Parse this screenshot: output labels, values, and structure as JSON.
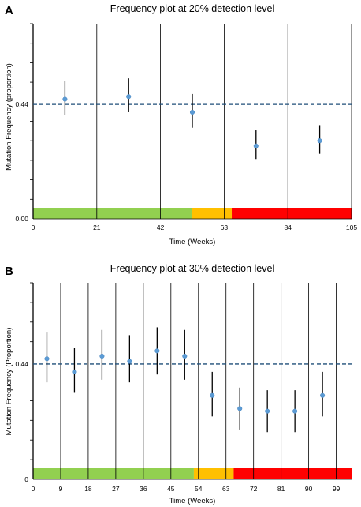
{
  "chart_data": [
    {
      "type": "scatter",
      "panel": "A",
      "title": "Frequency plot at 20% detection level",
      "xlabel": "Time (Weeks)",
      "ylabel": "Mutation Frequency (proportion)",
      "xlim": [
        0,
        105
      ],
      "ylim": [
        0,
        0.75
      ],
      "x_ticks": [
        0,
        21,
        42,
        63,
        84,
        105
      ],
      "y_tick_labels": [
        {
          "value": 0,
          "label": "0.00"
        },
        {
          "value": 0.44,
          "label": "0.44"
        }
      ],
      "y_minor_ticks": [
        0.075,
        0.15,
        0.225,
        0.3,
        0.375,
        0.525,
        0.6,
        0.675,
        0.75
      ],
      "vertical_lines_x": [
        0,
        21,
        42,
        63,
        84,
        105
      ],
      "reference_line_y": 0.44,
      "series": [
        {
          "points": [
            {
              "x": 10.5,
              "y": 0.46,
              "err_low": 0.4,
              "err_high": 0.53
            },
            {
              "x": 31.5,
              "y": 0.47,
              "err_low": 0.41,
              "err_high": 0.54
            },
            {
              "x": 52.5,
              "y": 0.41,
              "err_low": 0.35,
              "err_high": 0.48
            },
            {
              "x": 73.5,
              "y": 0.28,
              "err_low": 0.23,
              "err_high": 0.34
            },
            {
              "x": 94.5,
              "y": 0.3,
              "err_low": 0.25,
              "err_high": 0.36
            }
          ]
        }
      ],
      "bands": [
        {
          "from": 0,
          "to": 52.5,
          "color": "#92d050"
        },
        {
          "from": 52.5,
          "to": 65.5,
          "color": "#ffc000"
        },
        {
          "from": 65.5,
          "to": 105,
          "color": "#ff0000"
        }
      ]
    },
    {
      "type": "scatter",
      "panel": "B",
      "title": "Frequency plot at 30% detection level",
      "xlabel": "Time (Weeks)",
      "ylabel": "Mutation Frequency (Proportion)",
      "xlim": [
        0,
        104
      ],
      "ylim": [
        0,
        0.75
      ],
      "x_ticks": [
        0,
        9,
        18,
        27,
        36,
        45,
        54,
        63,
        72,
        81,
        90,
        99
      ],
      "y_tick_labels": [
        {
          "value": 0,
          "label": "0"
        },
        {
          "value": 0.44,
          "label": "0.44"
        }
      ],
      "y_minor_ticks": [
        0.075,
        0.15,
        0.225,
        0.3,
        0.375,
        0.525,
        0.6,
        0.675,
        0.75
      ],
      "vertical_lines_x": [
        0,
        9,
        18,
        27,
        36,
        45,
        54,
        63,
        72,
        81,
        90,
        99
      ],
      "reference_line_y": 0.44,
      "series": [
        {
          "points": [
            {
              "x": 4.5,
              "y": 0.46,
              "err_low": 0.37,
              "err_high": 0.56
            },
            {
              "x": 13.5,
              "y": 0.41,
              "err_low": 0.33,
              "err_high": 0.5
            },
            {
              "x": 22.5,
              "y": 0.47,
              "err_low": 0.38,
              "err_high": 0.57
            },
            {
              "x": 31.5,
              "y": 0.45,
              "err_low": 0.37,
              "err_high": 0.55
            },
            {
              "x": 40.5,
              "y": 0.49,
              "err_low": 0.4,
              "err_high": 0.58
            },
            {
              "x": 49.5,
              "y": 0.47,
              "err_low": 0.38,
              "err_high": 0.57
            },
            {
              "x": 58.5,
              "y": 0.32,
              "err_low": 0.24,
              "err_high": 0.41
            },
            {
              "x": 67.5,
              "y": 0.27,
              "err_low": 0.19,
              "err_high": 0.35
            },
            {
              "x": 76.5,
              "y": 0.26,
              "err_low": 0.18,
              "err_high": 0.34
            },
            {
              "x": 85.5,
              "y": 0.26,
              "err_low": 0.18,
              "err_high": 0.34
            },
            {
              "x": 94.5,
              "y": 0.32,
              "err_low": 0.24,
              "err_high": 0.41
            }
          ]
        }
      ],
      "bands": [
        {
          "from": 0,
          "to": 52.5,
          "color": "#92d050"
        },
        {
          "from": 52.5,
          "to": 65.5,
          "color": "#ffc000"
        },
        {
          "from": 65.5,
          "to": 104,
          "color": "#ff0000"
        }
      ]
    }
  ],
  "style": {
    "point_color": "#5b9bd5",
    "reference_line_color": "#1f4e79",
    "grid_line_color": "#000000"
  }
}
